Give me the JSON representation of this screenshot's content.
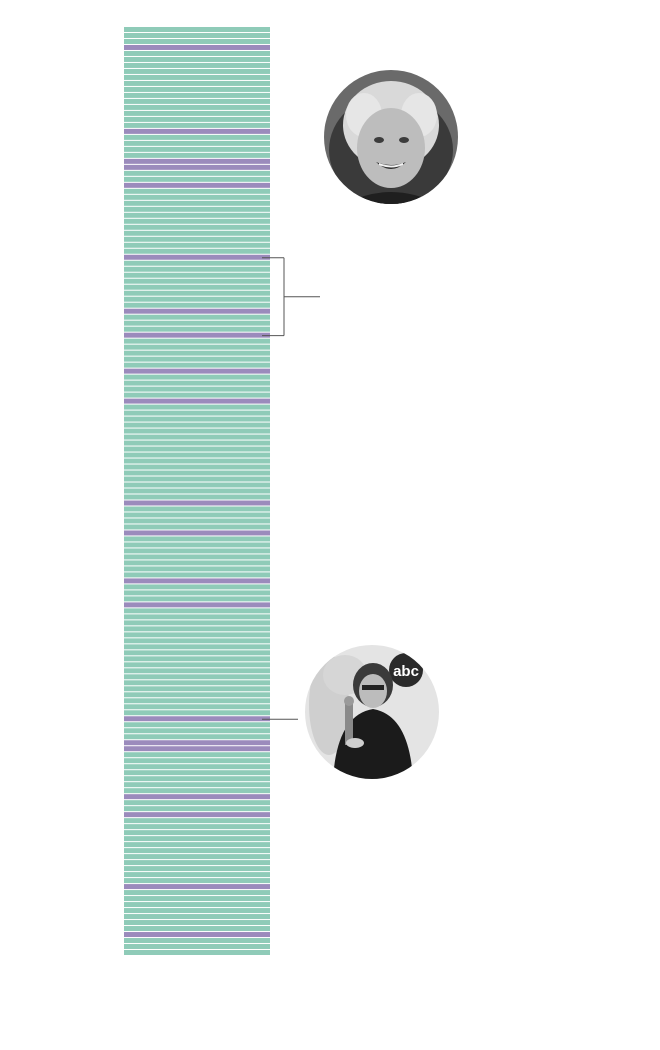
{
  "chart_data": {
    "type": "bar",
    "title": "",
    "xlabel": "",
    "ylabel": "",
    "grid": false,
    "legend": "none",
    "series": [
      {
        "values": [
          0,
          0,
          0,
          1,
          0,
          0,
          0,
          0,
          0,
          0,
          0,
          0,
          0,
          0,
          0,
          0,
          0,
          1,
          0,
          0,
          0,
          0,
          1,
          1,
          0,
          0,
          1,
          0,
          0,
          0,
          0,
          0,
          0,
          0,
          0,
          0,
          0,
          0,
          1,
          0,
          0,
          0,
          0,
          0,
          0,
          0,
          0,
          1,
          0,
          0,
          0,
          1,
          0,
          0,
          0,
          0,
          0,
          1,
          0,
          0,
          0,
          0,
          1,
          0,
          0,
          0,
          0,
          0,
          0,
          0,
          0,
          0,
          0,
          0,
          0,
          0,
          0,
          0,
          0,
          1,
          0,
          0,
          0,
          0,
          1,
          0,
          0,
          0,
          0,
          0,
          0,
          0,
          1,
          0,
          0,
          0,
          1,
          0,
          0,
          0,
          0,
          0,
          0,
          0,
          0,
          0,
          0,
          0,
          0,
          0,
          0,
          0,
          0,
          0,
          0,
          1,
          0,
          0,
          0,
          1,
          1,
          0,
          0,
          0,
          0,
          0,
          0,
          0,
          1,
          0,
          0,
          1,
          0,
          0,
          0,
          0,
          0,
          0,
          0,
          0,
          0,
          0,
          0,
          1,
          0,
          0,
          0,
          0,
          0,
          0,
          0,
          1,
          0,
          0,
          0
        ]
      }
    ],
    "annotations": [
      {
        "type": "bracket",
        "from_index": 38,
        "to_index": 51,
        "photo": "portrait-woman-blonde"
      },
      {
        "type": "marker",
        "index": 115,
        "photo": "portrait-woman-with-oscar"
      }
    ],
    "colors": {
      "base": "#8fcbb8",
      "highlight": "#9b8bbc",
      "separator": "#ffffff",
      "annotation": "#555555"
    }
  },
  "portraits": [
    {
      "logo_text": ""
    },
    {
      "logo_text": "abc"
    }
  ]
}
